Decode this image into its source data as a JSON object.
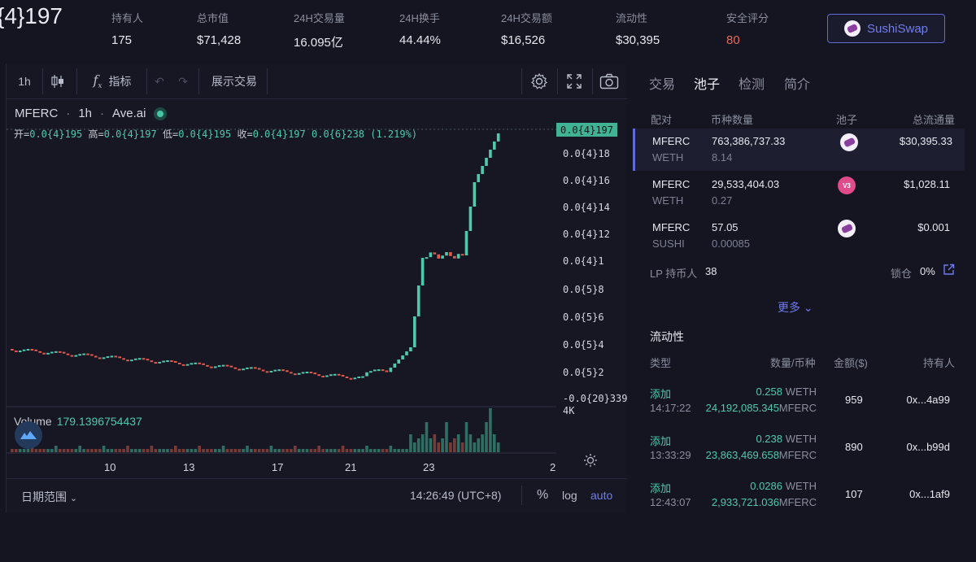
{
  "header": {
    "price": "{4}197",
    "stats": [
      {
        "label": "持有人",
        "value": "175",
        "color": ""
      },
      {
        "label": "总市值",
        "value": "$71,428",
        "color": ""
      },
      {
        "label": "24H交易量",
        "value": "16.095亿",
        "color": ""
      },
      {
        "label": "24H换手",
        "value": "44.44%",
        "color": ""
      },
      {
        "label": "24H交易额",
        "value": "$16,526",
        "color": ""
      },
      {
        "label": "流动性",
        "value": "$30,395",
        "color": ""
      },
      {
        "label": "安全评分",
        "value": "80",
        "color": "red"
      }
    ],
    "dex_button": "SushiSwap"
  },
  "toolbar": {
    "interval": "1h",
    "indicators": "指标",
    "show_trades": "展示交易"
  },
  "chart": {
    "symbol": "MFERC",
    "interval": "1h",
    "source": "Ave.ai",
    "ohlc": {
      "open_label": "开=",
      "open": "0.0{4}195",
      "high_label": "高=",
      "high": "0.0{4}197",
      "low_label": "低=",
      "low": "0.0{4}195",
      "close_label": "收=",
      "close": "0.0{4}197",
      "change": "0.0{6}238 (1.219%)"
    },
    "current_price_tag": "0.0{4}197",
    "y_ticks": [
      "0.0{4}18",
      "0.0{4}16",
      "0.0{4}14",
      "0.0{4}12",
      "0.0{4}1",
      "0.0{5}8",
      "0.0{5}6",
      "0.0{5}4",
      "0.0{5}2",
      "-0.0{20}339"
    ],
    "volume_label": "Volume",
    "volume_value": "179.1396754437",
    "volume_axis": "4K",
    "x_ticks": [
      "10",
      "13",
      "17",
      "21",
      "23",
      "2"
    ],
    "date_range": "日期范围",
    "time": "14:26:49 (UTC+8)",
    "pct": "%",
    "log": "log",
    "auto": "auto",
    "colors": {
      "up": "#4fc9ae",
      "down": "#e2584b"
    }
  },
  "chart_data": {
    "type": "candlestick",
    "note_units": "price in units of 1e-5",
    "ylim": [
      0,
      2.1
    ],
    "candles": [],
    "x_ticks": [
      "10",
      "13",
      "17",
      "21",
      "23",
      "2"
    ]
  },
  "right": {
    "tabs": [
      "交易",
      "池子",
      "检测",
      "简介"
    ],
    "active_tab": 1,
    "pool_headers": [
      "配对",
      "币种数量",
      "池子",
      "总流通量"
    ],
    "pools": [
      {
        "pair": "MFERC",
        "quote": "WETH",
        "amount": "763,386,737.33",
        "quote_amount": "8.14",
        "icon": "sushi",
        "total": "$30,395.33"
      },
      {
        "pair": "MFERC",
        "quote": "WETH",
        "amount": "29,533,404.03",
        "quote_amount": "0.27",
        "icon": "v3",
        "total": "$1,028.11"
      },
      {
        "pair": "MFERC",
        "quote": "SUSHI",
        "amount": "57.05",
        "quote_amount": "0.00085",
        "icon": "sushi",
        "total": "$0.001"
      }
    ],
    "v3_text": "V3",
    "lp_label": "LP 持币人",
    "lp_value": "38",
    "lock_label": "锁仓",
    "lock_value": "0%",
    "more": "更多",
    "liquidity_title": "流动性",
    "liq_headers": [
      "类型",
      "数量/币种",
      "金额($)",
      "持有人"
    ],
    "liq_rows": [
      {
        "type": "添加",
        "time": "14:17:22",
        "amt1": "0.258",
        "tok1": "WETH",
        "amt2": "24,192,085.345",
        "tok2": "MFERC",
        "usd": "959",
        "holder": "0x...4a99"
      },
      {
        "type": "添加",
        "time": "13:33:29",
        "amt1": "0.238",
        "tok1": "WETH",
        "amt2": "23,863,469.658",
        "tok2": "MFERC",
        "usd": "890",
        "holder": "0x...b99d"
      },
      {
        "type": "添加",
        "time": "12:43:07",
        "amt1": "0.0286",
        "tok1": "WETH",
        "amt2": "2,933,721.036",
        "tok2": "MFERC",
        "usd": "107",
        "holder": "0x...1af9"
      }
    ]
  }
}
